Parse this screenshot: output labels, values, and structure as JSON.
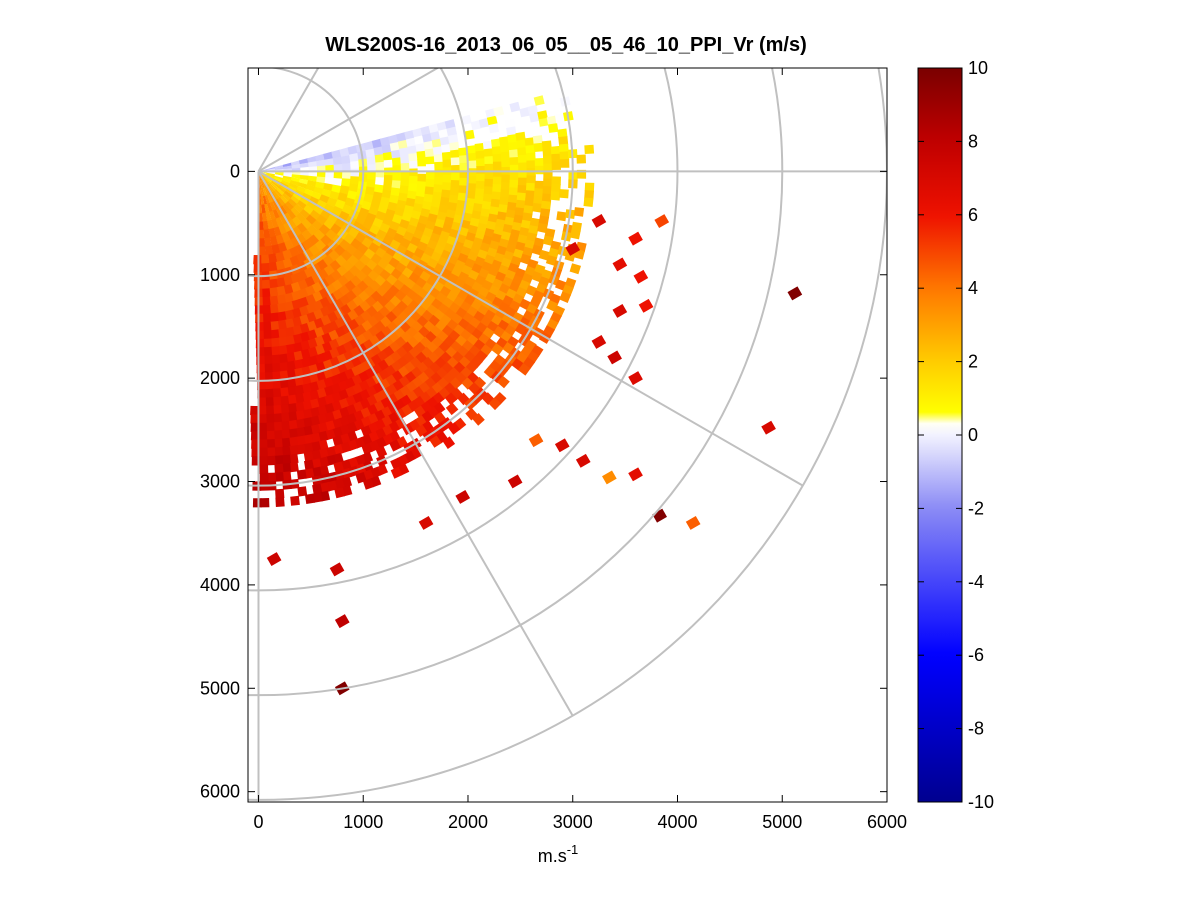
{
  "chart_data": {
    "type": "heatmap",
    "title": "WLS200S-16_2013_06_05__05_46_10_PPI_Vr (m/s)",
    "xlabel": "m.s",
    "xlabel_sup": "-1",
    "ylabel": "",
    "xlim": [
      -100,
      6000
    ],
    "ylim": [
      -1000,
      6100
    ],
    "y_reversed": true,
    "x_ticks": [
      0,
      1000,
      2000,
      3000,
      4000,
      5000,
      6000
    ],
    "x_tick_labels": [
      "0",
      "1000",
      "2000",
      "3000",
      "4000",
      "5000",
      "6000"
    ],
    "y_ticks": [
      0,
      1000,
      2000,
      3000,
      4000,
      5000,
      6000
    ],
    "y_tick_labels": [
      "0",
      "1000",
      "2000",
      "3000",
      "4000",
      "5000",
      "6000"
    ],
    "polar_grid": {
      "origin": [
        0,
        0
      ],
      "range_rings": [
        1000,
        2000,
        3000,
        4000,
        5000,
        6000
      ],
      "spoke_angles_deg": [
        -60,
        -30,
        0,
        30,
        60,
        90
      ]
    },
    "sector": {
      "angle_min_deg": -15,
      "angle_max_deg": 90,
      "dense_range_max_m": 3200
    },
    "colorbar": {
      "clim": [
        -10,
        10
      ],
      "ticks": [
        10,
        8,
        6,
        4,
        2,
        0,
        -2,
        -4,
        -6,
        -8,
        -10
      ],
      "tick_labels": [
        "10",
        "8",
        "6",
        "4",
        "2",
        "0",
        "-2",
        "-4",
        "-6",
        "-8",
        "-10"
      ],
      "colormap": "blue-white-yellow-red"
    },
    "colormap_stops": [
      {
        "v": -10,
        "c": "#00008f"
      },
      {
        "v": -6,
        "c": "#0000ff"
      },
      {
        "v": -2,
        "c": "#8a8af5"
      },
      {
        "v": 0,
        "c": "#f2f2ff"
      },
      {
        "v": 0.3,
        "c": "#ffffff"
      },
      {
        "v": 0.6,
        "c": "#ffff00"
      },
      {
        "v": 2,
        "c": "#ffcc00"
      },
      {
        "v": 4,
        "c": "#ff7700"
      },
      {
        "v": 6,
        "c": "#ee1100"
      },
      {
        "v": 8,
        "c": "#c00000"
      },
      {
        "v": 10,
        "c": "#7a0000"
      }
    ],
    "scatter_cells": [
      {
        "x": 5120,
        "y": 1180,
        "v": 9.8
      },
      {
        "x": 4870,
        "y": 2480,
        "v": 7.0
      },
      {
        "x": 3830,
        "y": 3330,
        "v": 9.8
      },
      {
        "x": 4150,
        "y": 3400,
        "v": 4.5
      },
      {
        "x": 3600,
        "y": 2930,
        "v": 6.5
      },
      {
        "x": 3350,
        "y": 2960,
        "v": 3.5
      },
      {
        "x": 3850,
        "y": 480,
        "v": 5.0
      },
      {
        "x": 3700,
        "y": 1300,
        "v": 6.0
      },
      {
        "x": 3600,
        "y": 2000,
        "v": 6.8
      },
      {
        "x": 3650,
        "y": 1020,
        "v": 6.0
      },
      {
        "x": 3450,
        "y": 1350,
        "v": 7.0
      },
      {
        "x": 3250,
        "y": 1650,
        "v": 7.0
      },
      {
        "x": 3400,
        "y": 1800,
        "v": 7.5
      },
      {
        "x": 2900,
        "y": 2650,
        "v": 7.0
      },
      {
        "x": 3100,
        "y": 2800,
        "v": 7.0
      },
      {
        "x": 2650,
        "y": 2600,
        "v": 4.5
      },
      {
        "x": 2450,
        "y": 3000,
        "v": 7.5
      },
      {
        "x": 1950,
        "y": 3150,
        "v": 7.5
      },
      {
        "x": 1600,
        "y": 3400,
        "v": 7.0
      },
      {
        "x": 750,
        "y": 3850,
        "v": 7.5
      },
      {
        "x": 150,
        "y": 3750,
        "v": 7.5
      },
      {
        "x": 800,
        "y": 4350,
        "v": 8.0
      },
      {
        "x": 800,
        "y": 5000,
        "v": 9.8
      },
      {
        "x": 3250,
        "y": 480,
        "v": 7.0
      },
      {
        "x": 3000,
        "y": 750,
        "v": 7.0
      },
      {
        "x": 3600,
        "y": 650,
        "v": 6.0
      },
      {
        "x": 3450,
        "y": 900,
        "v": 6.5
      }
    ]
  }
}
